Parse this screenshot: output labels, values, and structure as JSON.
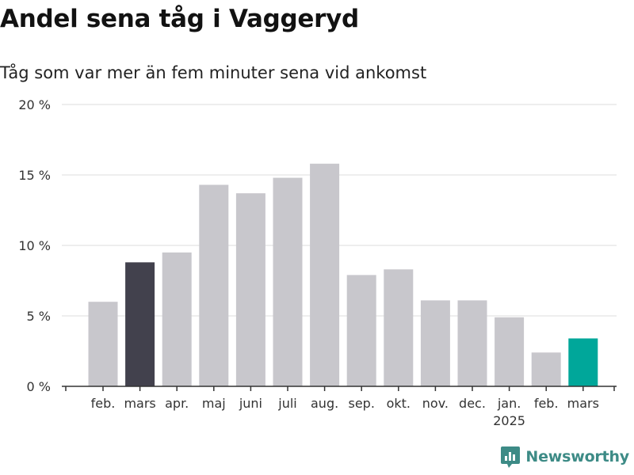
{
  "title": "Andel sena tåg i Vaggeryd",
  "subtitle": "Tåg som var mer än fem minuter sena vid ankomst",
  "brand": "Newsworthy",
  "colors": {
    "default": "#c8c7cc",
    "previous_year": "#42414d",
    "current": "#00a79a",
    "grid": "#dddddd",
    "axis": "#333333"
  },
  "chart_data": {
    "type": "bar",
    "title": "Andel sena tåg i Vaggeryd",
    "subtitle": "Tåg som var mer än fem minuter sena vid ankomst",
    "categories": [
      "feb.",
      "mars",
      "apr.",
      "maj",
      "juni",
      "juli",
      "aug.",
      "sep.",
      "okt.",
      "nov.",
      "dec.",
      "jan.",
      "feb.",
      "mars"
    ],
    "category_sublabels": [
      "",
      "",
      "",
      "",
      "",
      "",
      "",
      "",
      "",
      "",
      "",
      "2025",
      "",
      ""
    ],
    "values": [
      6.0,
      8.8,
      9.5,
      14.3,
      13.7,
      14.8,
      15.8,
      7.9,
      8.3,
      6.1,
      6.1,
      4.9,
      2.4,
      3.4
    ],
    "highlight": [
      "default",
      "previous_year",
      "default",
      "default",
      "default",
      "default",
      "default",
      "default",
      "default",
      "default",
      "default",
      "default",
      "default",
      "current"
    ],
    "unit": "%",
    "yticks": [
      0,
      5,
      10,
      15,
      20
    ],
    "ytick_labels": [
      "0 %",
      "5 %",
      "10 %",
      "15 %",
      "20 %"
    ],
    "ylim": [
      0,
      20
    ],
    "xlabel": "",
    "ylabel": "",
    "grid": true,
    "legend": "none"
  }
}
